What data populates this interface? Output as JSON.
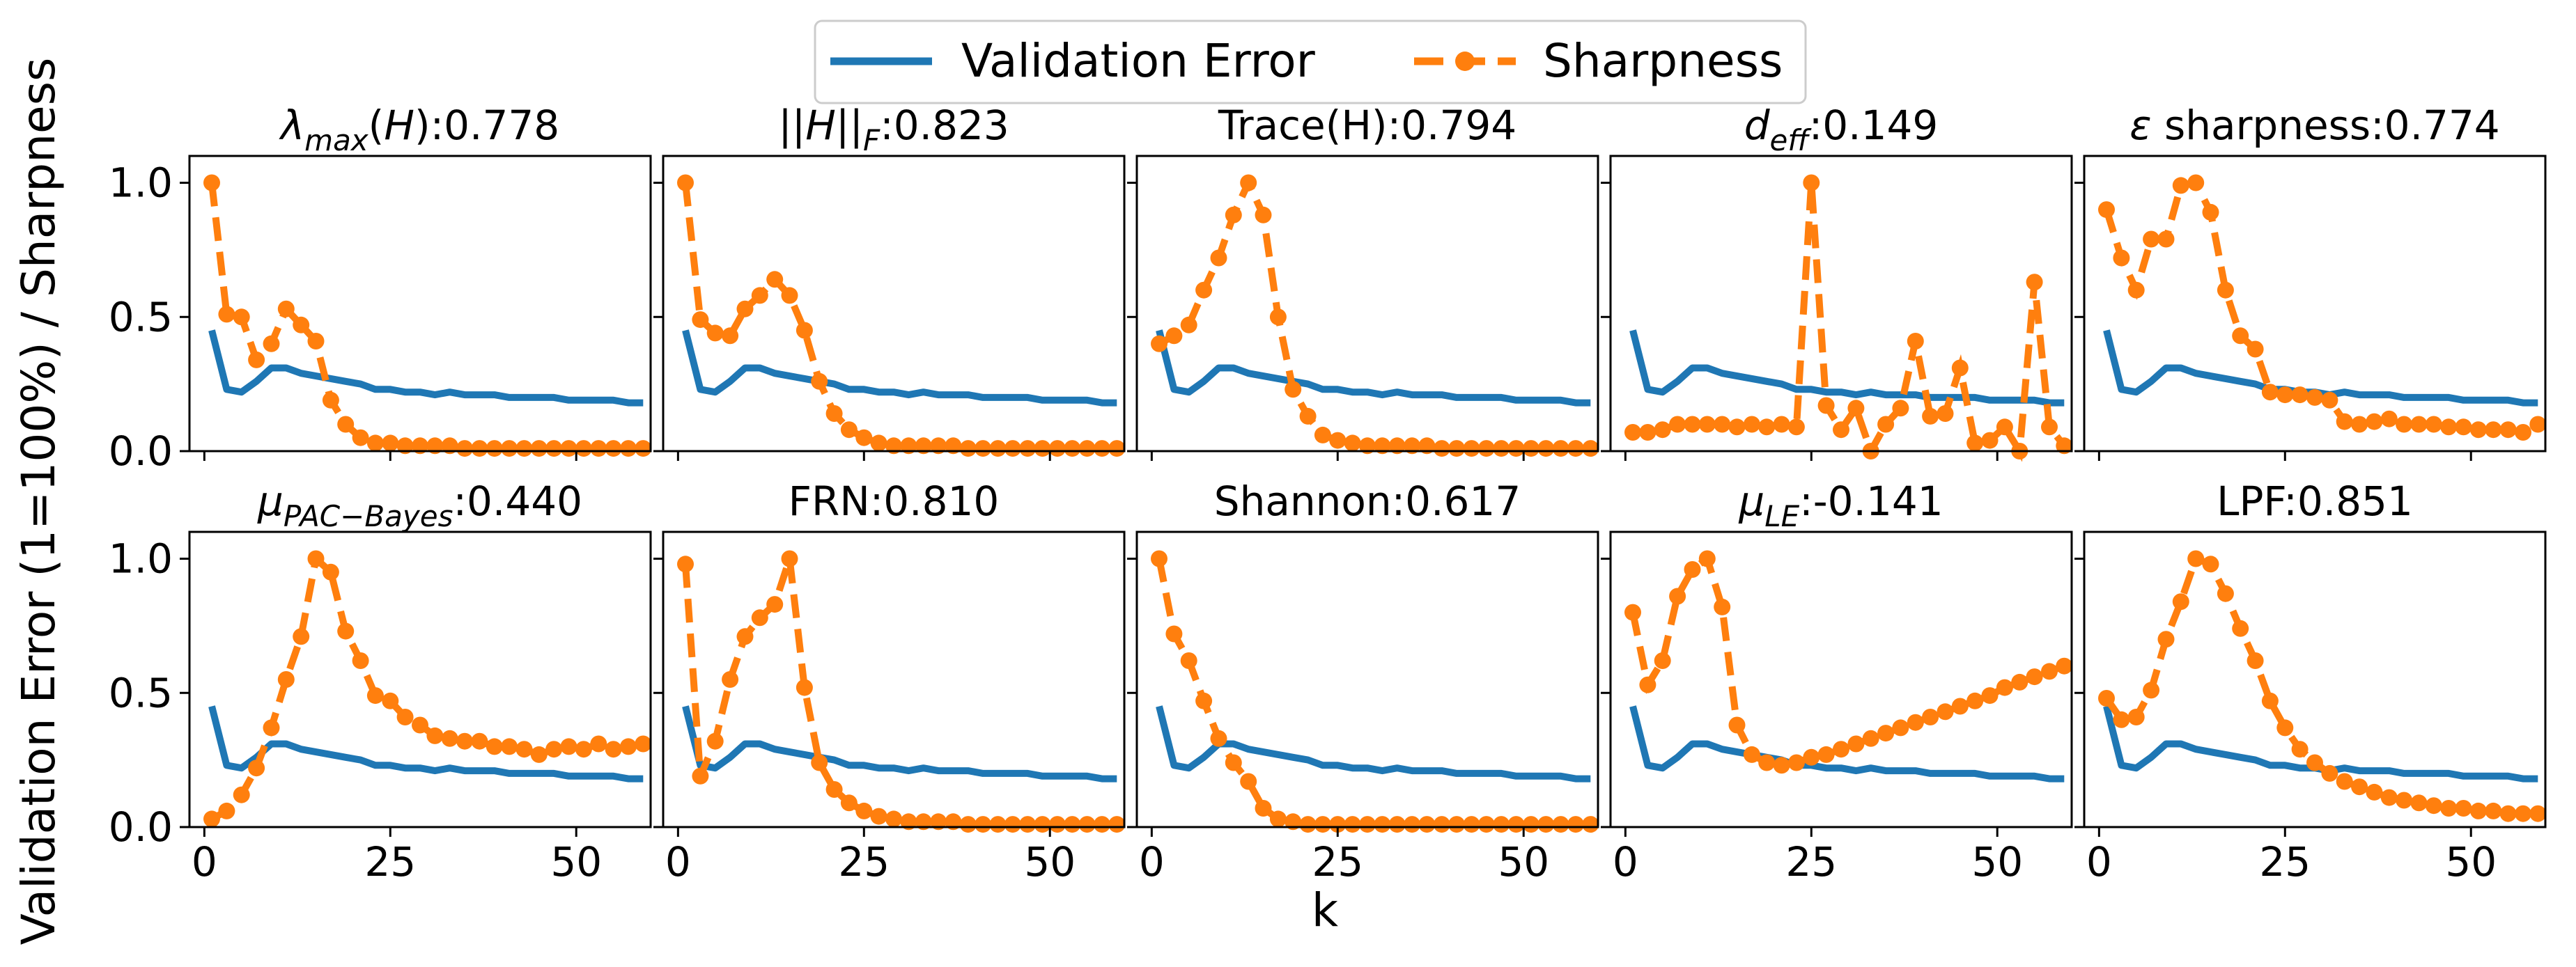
{
  "legend": {
    "validation": "Validation Error",
    "sharpness": "Sharpness"
  },
  "ylabel": "Validation Error (1=100%) / Sharpness",
  "xlabel": "k",
  "colors": {
    "validation": "#1f77b4",
    "sharpness": "#ff7f0e"
  },
  "chart_data": {
    "type": "line",
    "layout": "2x5 grid of subplots, shared x and y axes",
    "xlim": [
      -2,
      60
    ],
    "ylim": [
      0,
      1.1
    ],
    "xticks": [
      0,
      25,
      50
    ],
    "yticks": [
      0.0,
      0.5,
      1.0
    ],
    "x": [
      1,
      3,
      5,
      7,
      9,
      11,
      13,
      15,
      17,
      19,
      21,
      23,
      25,
      27,
      29,
      31,
      33,
      35,
      37,
      39,
      41,
      43,
      45,
      47,
      49,
      51,
      53,
      55,
      57,
      59
    ],
    "validation_error": [
      0.45,
      0.23,
      0.22,
      0.26,
      0.31,
      0.31,
      0.29,
      0.28,
      0.27,
      0.26,
      0.25,
      0.23,
      0.23,
      0.22,
      0.22,
      0.21,
      0.22,
      0.21,
      0.21,
      0.21,
      0.2,
      0.2,
      0.2,
      0.2,
      0.19,
      0.19,
      0.19,
      0.19,
      0.18,
      0.18
    ],
    "panels": [
      {
        "label": "λmax(H):0.778",
        "sharpness": [
          1.0,
          0.51,
          0.5,
          0.34,
          0.4,
          0.53,
          0.47,
          0.41,
          0.19,
          0.1,
          0.05,
          0.03,
          0.03,
          0.02,
          0.02,
          0.02,
          0.02,
          0.01,
          0.01,
          0.01,
          0.01,
          0.01,
          0.01,
          0.01,
          0.01,
          0.01,
          0.01,
          0.01,
          0.01,
          0.01
        ]
      },
      {
        "label": "||H||F:0.823",
        "sharpness": [
          1.0,
          0.49,
          0.44,
          0.43,
          0.53,
          0.58,
          0.64,
          0.58,
          0.45,
          0.26,
          0.14,
          0.08,
          0.05,
          0.03,
          0.02,
          0.02,
          0.02,
          0.02,
          0.02,
          0.01,
          0.01,
          0.01,
          0.01,
          0.01,
          0.01,
          0.01,
          0.01,
          0.01,
          0.01,
          0.01
        ]
      },
      {
        "label": "Trace(H):0.794",
        "sharpness": [
          0.4,
          0.43,
          0.47,
          0.6,
          0.72,
          0.88,
          1.0,
          0.88,
          0.5,
          0.23,
          0.13,
          0.06,
          0.04,
          0.03,
          0.02,
          0.02,
          0.02,
          0.02,
          0.02,
          0.01,
          0.01,
          0.01,
          0.01,
          0.01,
          0.01,
          0.01,
          0.01,
          0.01,
          0.01,
          0.01
        ]
      },
      {
        "label": "deff:0.149",
        "sharpness": [
          0.07,
          0.07,
          0.08,
          0.1,
          0.1,
          0.1,
          0.1,
          0.09,
          0.1,
          0.09,
          0.1,
          0.09,
          1.0,
          0.17,
          0.08,
          0.16,
          0.0,
          0.1,
          0.16,
          0.41,
          0.13,
          0.14,
          0.31,
          0.03,
          0.04,
          0.09,
          0.0,
          0.63,
          0.09,
          0.02
        ]
      },
      {
        "label": "ε sharpness:0.774",
        "sharpness": [
          0.9,
          0.72,
          0.6,
          0.79,
          0.79,
          0.99,
          1.0,
          0.89,
          0.6,
          0.43,
          0.38,
          0.22,
          0.21,
          0.21,
          0.2,
          0.19,
          0.11,
          0.1,
          0.11,
          0.12,
          0.1,
          0.1,
          0.1,
          0.09,
          0.09,
          0.08,
          0.08,
          0.08,
          0.07,
          0.1
        ]
      },
      {
        "label": "μPAC−Bayes:0.440",
        "sharpness": [
          0.03,
          0.06,
          0.12,
          0.22,
          0.37,
          0.55,
          0.71,
          1.0,
          0.95,
          0.73,
          0.62,
          0.49,
          0.47,
          0.41,
          0.38,
          0.34,
          0.33,
          0.32,
          0.32,
          0.3,
          0.3,
          0.29,
          0.27,
          0.29,
          0.3,
          0.29,
          0.31,
          0.29,
          0.3,
          0.31
        ]
      },
      {
        "label": "FRN:0.810",
        "sharpness": [
          0.98,
          0.19,
          0.32,
          0.55,
          0.71,
          0.78,
          0.83,
          1.0,
          0.52,
          0.24,
          0.14,
          0.09,
          0.06,
          0.04,
          0.03,
          0.02,
          0.02,
          0.02,
          0.02,
          0.01,
          0.01,
          0.01,
          0.01,
          0.01,
          0.01,
          0.01,
          0.01,
          0.01,
          0.01,
          0.01
        ]
      },
      {
        "label": "Shannon:0.617",
        "sharpness": [
          1.0,
          0.72,
          0.62,
          0.47,
          0.33,
          0.24,
          0.17,
          0.07,
          0.03,
          0.02,
          0.01,
          0.01,
          0.01,
          0.01,
          0.01,
          0.01,
          0.01,
          0.01,
          0.01,
          0.01,
          0.01,
          0.01,
          0.01,
          0.01,
          0.01,
          0.01,
          0.01,
          0.01,
          0.01,
          0.01
        ]
      },
      {
        "label": "μLE:-0.141",
        "sharpness": [
          0.8,
          0.53,
          0.62,
          0.86,
          0.96,
          1.0,
          0.82,
          0.38,
          0.27,
          0.24,
          0.23,
          0.24,
          0.26,
          0.27,
          0.29,
          0.31,
          0.33,
          0.35,
          0.37,
          0.39,
          0.41,
          0.43,
          0.45,
          0.47,
          0.49,
          0.52,
          0.54,
          0.56,
          0.58,
          0.6
        ]
      },
      {
        "label": "LPF:0.851",
        "sharpness": [
          0.48,
          0.4,
          0.41,
          0.51,
          0.7,
          0.84,
          1.0,
          0.98,
          0.87,
          0.74,
          0.62,
          0.47,
          0.37,
          0.29,
          0.24,
          0.2,
          0.17,
          0.15,
          0.13,
          0.11,
          0.1,
          0.09,
          0.08,
          0.07,
          0.07,
          0.06,
          0.06,
          0.05,
          0.05,
          0.05
        ]
      }
    ]
  }
}
